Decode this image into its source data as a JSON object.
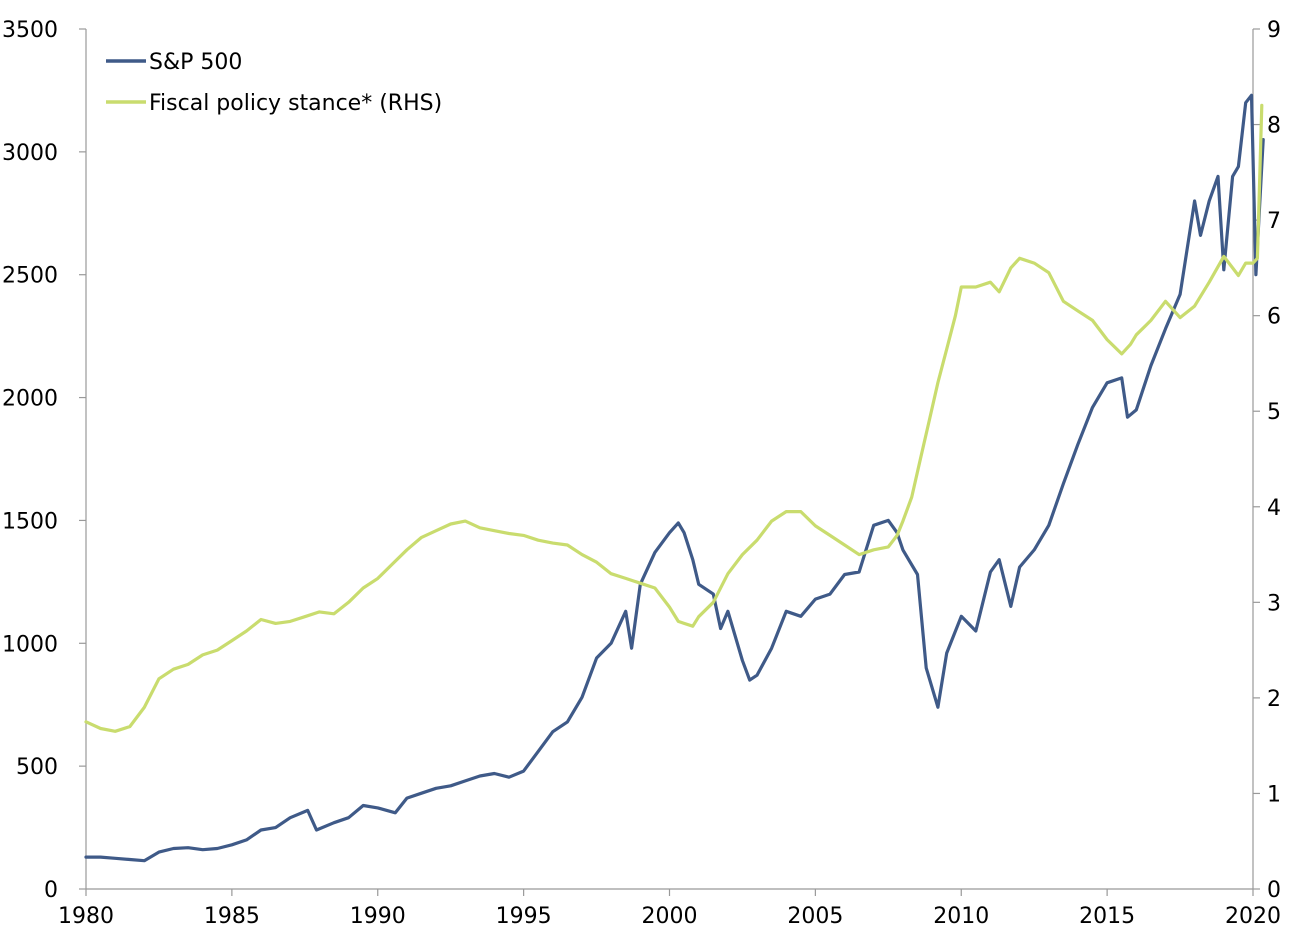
{
  "chart_data": {
    "type": "line",
    "title": "",
    "xlabel": "",
    "ylabel": "",
    "xlim": [
      1980,
      2020
    ],
    "ylim_left": [
      0,
      3500
    ],
    "ylim_right": [
      0,
      9
    ],
    "x_ticks": [
      "1980",
      "1985",
      "1990",
      "1995",
      "2000",
      "2005",
      "2010",
      "2015",
      "2020"
    ],
    "y_ticks_left": [
      "0",
      "500",
      "1000",
      "1500",
      "2000",
      "2500",
      "3000",
      "3500"
    ],
    "y_ticks_right": [
      "0",
      "1",
      "2",
      "3",
      "4",
      "5",
      "6",
      "7",
      "8",
      "9"
    ],
    "grid": false,
    "legend_position": "top-left",
    "series": [
      {
        "name": "S&P 500",
        "axis": "left",
        "color": "#3f5a88",
        "points": [
          [
            1980.0,
            130
          ],
          [
            1980.5,
            130
          ],
          [
            1981.0,
            125
          ],
          [
            1981.5,
            120
          ],
          [
            1982.0,
            115
          ],
          [
            1982.5,
            150
          ],
          [
            1983.0,
            165
          ],
          [
            1983.5,
            168
          ],
          [
            1984.0,
            160
          ],
          [
            1984.5,
            165
          ],
          [
            1985.0,
            180
          ],
          [
            1985.5,
            200
          ],
          [
            1986.0,
            240
          ],
          [
            1986.5,
            250
          ],
          [
            1987.0,
            290
          ],
          [
            1987.6,
            320
          ],
          [
            1987.9,
            240
          ],
          [
            1988.5,
            270
          ],
          [
            1989.0,
            290
          ],
          [
            1989.5,
            340
          ],
          [
            1990.0,
            330
          ],
          [
            1990.6,
            310
          ],
          [
            1991.0,
            370
          ],
          [
            1991.5,
            390
          ],
          [
            1992.0,
            410
          ],
          [
            1992.5,
            420
          ],
          [
            1993.0,
            440
          ],
          [
            1993.5,
            460
          ],
          [
            1994.0,
            470
          ],
          [
            1994.5,
            455
          ],
          [
            1995.0,
            480
          ],
          [
            1995.5,
            560
          ],
          [
            1996.0,
            640
          ],
          [
            1996.5,
            680
          ],
          [
            1997.0,
            780
          ],
          [
            1997.5,
            940
          ],
          [
            1998.0,
            1000
          ],
          [
            1998.5,
            1130
          ],
          [
            1998.7,
            980
          ],
          [
            1999.0,
            1240
          ],
          [
            1999.5,
            1370
          ],
          [
            2000.0,
            1450
          ],
          [
            2000.3,
            1490
          ],
          [
            2000.5,
            1450
          ],
          [
            2000.8,
            1340
          ],
          [
            2001.0,
            1240
          ],
          [
            2001.5,
            1200
          ],
          [
            2001.75,
            1060
          ],
          [
            2002.0,
            1130
          ],
          [
            2002.5,
            930
          ],
          [
            2002.75,
            850
          ],
          [
            2003.0,
            870
          ],
          [
            2003.5,
            980
          ],
          [
            2004.0,
            1130
          ],
          [
            2004.5,
            1110
          ],
          [
            2005.0,
            1180
          ],
          [
            2005.5,
            1200
          ],
          [
            2006.0,
            1280
          ],
          [
            2006.5,
            1290
          ],
          [
            2007.0,
            1480
          ],
          [
            2007.5,
            1500
          ],
          [
            2007.8,
            1450
          ],
          [
            2008.0,
            1380
          ],
          [
            2008.5,
            1280
          ],
          [
            2008.8,
            900
          ],
          [
            2009.2,
            740
          ],
          [
            2009.5,
            960
          ],
          [
            2010.0,
            1110
          ],
          [
            2010.5,
            1050
          ],
          [
            2011.0,
            1290
          ],
          [
            2011.3,
            1340
          ],
          [
            2011.7,
            1150
          ],
          [
            2012.0,
            1310
          ],
          [
            2012.5,
            1380
          ],
          [
            2013.0,
            1480
          ],
          [
            2013.5,
            1650
          ],
          [
            2014.0,
            1810
          ],
          [
            2014.5,
            1960
          ],
          [
            2015.0,
            2060
          ],
          [
            2015.5,
            2080
          ],
          [
            2015.7,
            1920
          ],
          [
            2016.0,
            1950
          ],
          [
            2016.5,
            2130
          ],
          [
            2017.0,
            2280
          ],
          [
            2017.5,
            2420
          ],
          [
            2018.0,
            2800
          ],
          [
            2018.2,
            2660
          ],
          [
            2018.5,
            2800
          ],
          [
            2018.8,
            2900
          ],
          [
            2019.0,
            2520
          ],
          [
            2019.3,
            2900
          ],
          [
            2019.5,
            2940
          ],
          [
            2019.75,
            3200
          ],
          [
            2019.95,
            3230
          ],
          [
            2020.1,
            2500
          ],
          [
            2020.35,
            3050
          ]
        ]
      },
      {
        "name": "Fiscal policy stance* (RHS)",
        "axis": "right",
        "color": "#c9dc6e",
        "points": [
          [
            1980.0,
            1.75
          ],
          [
            1980.5,
            1.68
          ],
          [
            1981.0,
            1.65
          ],
          [
            1981.5,
            1.7
          ],
          [
            1982.0,
            1.9
          ],
          [
            1982.5,
            2.2
          ],
          [
            1983.0,
            2.3
          ],
          [
            1983.5,
            2.35
          ],
          [
            1984.0,
            2.45
          ],
          [
            1984.5,
            2.5
          ],
          [
            1985.0,
            2.6
          ],
          [
            1985.5,
            2.7
          ],
          [
            1986.0,
            2.82
          ],
          [
            1986.5,
            2.78
          ],
          [
            1987.0,
            2.8
          ],
          [
            1987.5,
            2.85
          ],
          [
            1988.0,
            2.9
          ],
          [
            1988.5,
            2.88
          ],
          [
            1989.0,
            3.0
          ],
          [
            1989.5,
            3.15
          ],
          [
            1990.0,
            3.25
          ],
          [
            1990.5,
            3.4
          ],
          [
            1991.0,
            3.55
          ],
          [
            1991.5,
            3.68
          ],
          [
            1992.0,
            3.75
          ],
          [
            1992.5,
            3.82
          ],
          [
            1993.0,
            3.85
          ],
          [
            1993.5,
            3.78
          ],
          [
            1994.0,
            3.75
          ],
          [
            1994.5,
            3.72
          ],
          [
            1995.0,
            3.7
          ],
          [
            1995.5,
            3.65
          ],
          [
            1996.0,
            3.62
          ],
          [
            1996.5,
            3.6
          ],
          [
            1997.0,
            3.5
          ],
          [
            1997.5,
            3.42
          ],
          [
            1998.0,
            3.3
          ],
          [
            1998.5,
            3.25
          ],
          [
            1999.0,
            3.2
          ],
          [
            1999.5,
            3.15
          ],
          [
            2000.0,
            2.95
          ],
          [
            2000.3,
            2.8
          ],
          [
            2000.5,
            2.78
          ],
          [
            2000.8,
            2.75
          ],
          [
            2001.0,
            2.85
          ],
          [
            2001.5,
            3.0
          ],
          [
            2002.0,
            3.3
          ],
          [
            2002.5,
            3.5
          ],
          [
            2003.0,
            3.65
          ],
          [
            2003.5,
            3.85
          ],
          [
            2004.0,
            3.95
          ],
          [
            2004.5,
            3.95
          ],
          [
            2005.0,
            3.8
          ],
          [
            2005.5,
            3.7
          ],
          [
            2006.0,
            3.6
          ],
          [
            2006.5,
            3.5
          ],
          [
            2007.0,
            3.55
          ],
          [
            2007.5,
            3.58
          ],
          [
            2007.8,
            3.7
          ],
          [
            2008.0,
            3.85
          ],
          [
            2008.3,
            4.1
          ],
          [
            2008.6,
            4.5
          ],
          [
            2008.9,
            4.9
          ],
          [
            2009.2,
            5.3
          ],
          [
            2009.5,
            5.65
          ],
          [
            2009.8,
            6.0
          ],
          [
            2010.0,
            6.3
          ],
          [
            2010.5,
            6.3
          ],
          [
            2011.0,
            6.35
          ],
          [
            2011.3,
            6.25
          ],
          [
            2011.7,
            6.5
          ],
          [
            2012.0,
            6.6
          ],
          [
            2012.5,
            6.55
          ],
          [
            2013.0,
            6.45
          ],
          [
            2013.5,
            6.15
          ],
          [
            2014.0,
            6.05
          ],
          [
            2014.5,
            5.95
          ],
          [
            2015.0,
            5.75
          ],
          [
            2015.5,
            5.6
          ],
          [
            2015.8,
            5.7
          ],
          [
            2016.0,
            5.8
          ],
          [
            2016.5,
            5.95
          ],
          [
            2017.0,
            6.15
          ],
          [
            2017.5,
            5.98
          ],
          [
            2018.0,
            6.1
          ],
          [
            2018.5,
            6.35
          ],
          [
            2019.0,
            6.62
          ],
          [
            2019.3,
            6.5
          ],
          [
            2019.5,
            6.42
          ],
          [
            2019.75,
            6.55
          ],
          [
            2020.0,
            6.55
          ],
          [
            2020.15,
            6.6
          ],
          [
            2020.3,
            8.2
          ]
        ]
      }
    ]
  }
}
